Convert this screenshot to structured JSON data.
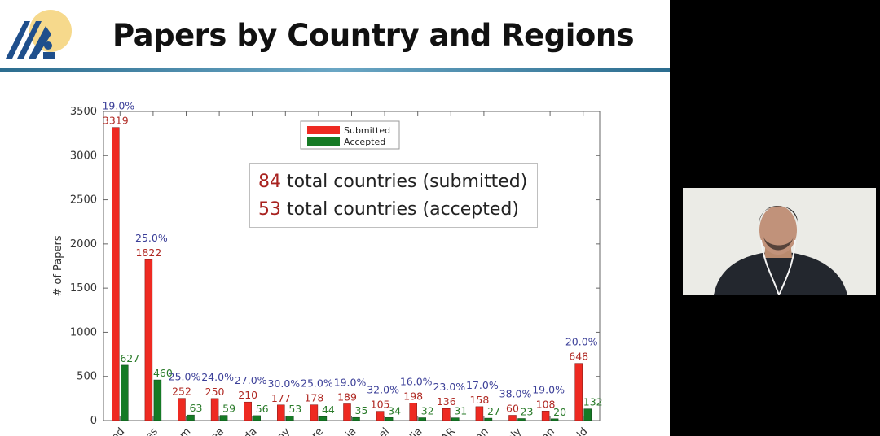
{
  "slide": {
    "title": "Papers by Country and Regions",
    "callout": {
      "submitted_count": "84",
      "submitted_text": " total countries (submitted)",
      "accepted_count": "53",
      "accepted_text": " total countries (accepted)"
    }
  },
  "colors": {
    "submitted": "#ee2a22",
    "accepted": "#157a25",
    "submitted_label": "#b02a24",
    "accepted_label": "#2a7b2a",
    "percent_label": "#3b3f98",
    "logo_blue": "#1f4f8c",
    "logo_sun": "#f6d98c"
  },
  "chart_data": {
    "type": "bar",
    "ylabel": "# of Papers",
    "ylim": [
      0,
      3500
    ],
    "yticks": [
      0,
      500,
      1000,
      1500,
      2000,
      2500,
      3000,
      3500
    ],
    "categories": [
      "nd",
      "es",
      "m",
      "ea",
      "da",
      "ny",
      "re",
      "ia",
      "el",
      "lia",
      "AR",
      "an",
      "aly",
      "an",
      "ld"
    ],
    "series": [
      {
        "name": "Submitted",
        "values": [
          3319,
          1822,
          252,
          250,
          210,
          177,
          178,
          189,
          105,
          198,
          136,
          158,
          60,
          108,
          648
        ]
      },
      {
        "name": "Accepted",
        "values": [
          627,
          460,
          63,
          59,
          56,
          53,
          44,
          35,
          34,
          32,
          31,
          27,
          23,
          20,
          132
        ]
      }
    ],
    "accepted_labels": [
      "627",
      "460",
      "63",
      "59",
      "56",
      "53",
      "44",
      "35",
      "34",
      "32",
      "31",
      "27",
      "23",
      "20",
      "132"
    ],
    "acceptance_rates": [
      "19.0%",
      "25.0%",
      "25.0%",
      "24.0%",
      "27.0%",
      "30.0%",
      "25.0%",
      "19.0%",
      "32.0%",
      "16.0%",
      "23.0%",
      "17.0%",
      "38.0%",
      "19.0%",
      "20.0%"
    ],
    "legend": {
      "placement": "top-center"
    }
  }
}
